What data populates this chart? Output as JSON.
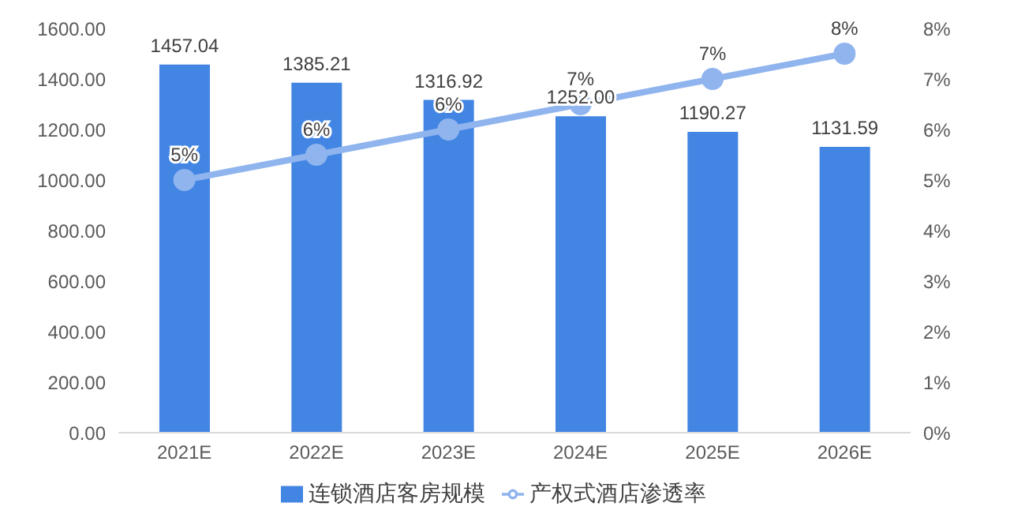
{
  "chart_data": {
    "type": "bar",
    "categories": [
      "2021E",
      "2022E",
      "2023E",
      "2024E",
      "2025E",
      "2026E"
    ],
    "series": [
      {
        "name": "连锁酒店客房规模",
        "color": "#4285e3",
        "values": [
          1457.04,
          1385.21,
          1316.92,
          1252.0,
          1190.27,
          1131.59
        ],
        "value_labels": [
          "1457.04",
          "1385.21",
          "1316.92",
          "1252.00",
          "1190.27",
          "1131.59"
        ]
      },
      {
        "name": "产权式酒店渗透率",
        "type": "line",
        "axis": "y2",
        "color": "#8fb4ee",
        "values": [
          5.0,
          5.5,
          6.0,
          6.5,
          7.0,
          7.5
        ],
        "value_labels": [
          "5%",
          "6%",
          "6%",
          "7%",
          "7%",
          "8%"
        ]
      }
    ],
    "ylim": [
      0,
      1600
    ],
    "yticks": [
      {
        "value": 0,
        "label": "0.00"
      },
      {
        "value": 200,
        "label": "200.00"
      },
      {
        "value": 400,
        "label": "400.00"
      },
      {
        "value": 600,
        "label": "600.00"
      },
      {
        "value": 800,
        "label": "800.00"
      },
      {
        "value": 1000,
        "label": "1000.00"
      },
      {
        "value": 1200,
        "label": "1200.00"
      },
      {
        "value": 1400,
        "label": "1400.00"
      },
      {
        "value": 1600,
        "label": "1600.00"
      }
    ],
    "y2lim": [
      0,
      8
    ],
    "y2ticks": [
      {
        "value": 0,
        "label": "0%"
      },
      {
        "value": 1,
        "label": "1%"
      },
      {
        "value": 2,
        "label": "2%"
      },
      {
        "value": 3,
        "label": "3%"
      },
      {
        "value": 4,
        "label": "4%"
      },
      {
        "value": 5,
        "label": "5%"
      },
      {
        "value": 6,
        "label": "6%"
      },
      {
        "value": 7,
        "label": "7%"
      },
      {
        "value": 8,
        "label": "8%"
      }
    ],
    "marker": "circle",
    "legend": "bottom",
    "grid": false
  }
}
